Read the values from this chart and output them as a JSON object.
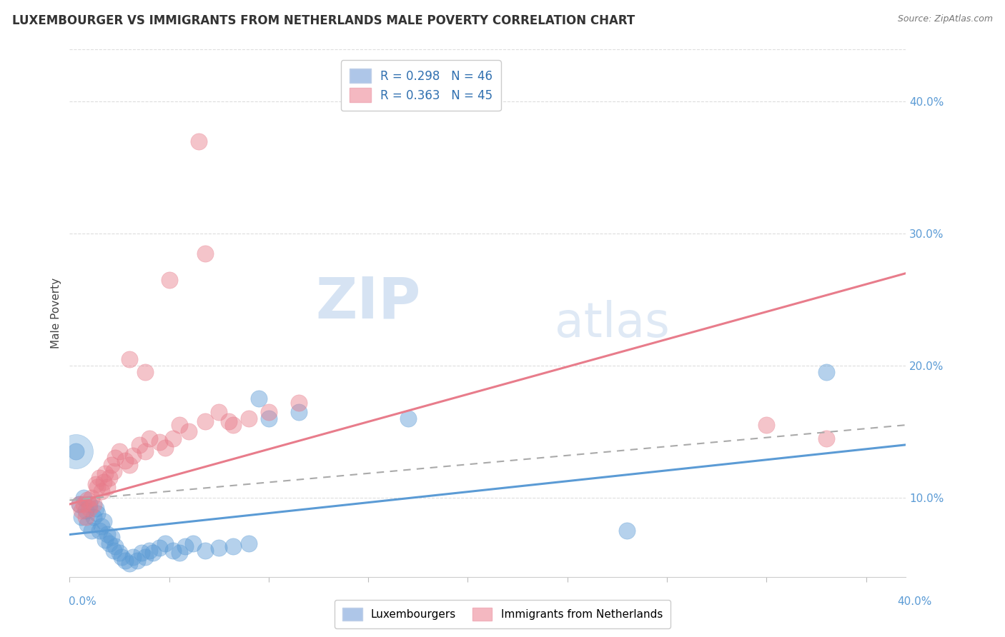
{
  "title": "LUXEMBOURGER VS IMMIGRANTS FROM NETHERLANDS MALE POVERTY CORRELATION CHART",
  "source": "Source: ZipAtlas.com",
  "ylabel": "Male Poverty",
  "y_tick_labels": [
    "10.0%",
    "20.0%",
    "30.0%",
    "40.0%"
  ],
  "y_tick_values": [
    0.1,
    0.2,
    0.3,
    0.4
  ],
  "xlim": [
    0.0,
    0.42
  ],
  "ylim": [
    0.04,
    0.44
  ],
  "legend_entries": [
    {
      "label": "R = 0.298   N = 46",
      "color": "#aec6e8"
    },
    {
      "label": "R = 0.363   N = 45",
      "color": "#f4b8c1"
    }
  ],
  "legend_label_bottom": [
    "Luxembourgers",
    "Immigrants from Netherlands"
  ],
  "blue_color": "#5b9bd5",
  "pink_color": "#e87c8b",
  "blue_scatter": [
    [
      0.003,
      0.135
    ],
    [
      0.005,
      0.095
    ],
    [
      0.006,
      0.085
    ],
    [
      0.007,
      0.1
    ],
    [
      0.008,
      0.09
    ],
    [
      0.009,
      0.08
    ],
    [
      0.01,
      0.095
    ],
    [
      0.011,
      0.075
    ],
    [
      0.012,
      0.085
    ],
    [
      0.013,
      0.092
    ],
    [
      0.014,
      0.088
    ],
    [
      0.015,
      0.075
    ],
    [
      0.016,
      0.078
    ],
    [
      0.017,
      0.082
    ],
    [
      0.018,
      0.068
    ],
    [
      0.019,
      0.072
    ],
    [
      0.02,
      0.065
    ],
    [
      0.021,
      0.07
    ],
    [
      0.022,
      0.06
    ],
    [
      0.023,
      0.063
    ],
    [
      0.025,
      0.058
    ],
    [
      0.026,
      0.055
    ],
    [
      0.028,
      0.052
    ],
    [
      0.03,
      0.05
    ],
    [
      0.032,
      0.055
    ],
    [
      0.034,
      0.052
    ],
    [
      0.036,
      0.058
    ],
    [
      0.038,
      0.055
    ],
    [
      0.04,
      0.06
    ],
    [
      0.042,
      0.058
    ],
    [
      0.045,
      0.062
    ],
    [
      0.048,
      0.065
    ],
    [
      0.052,
      0.06
    ],
    [
      0.055,
      0.058
    ],
    [
      0.058,
      0.063
    ],
    [
      0.062,
      0.065
    ],
    [
      0.068,
      0.06
    ],
    [
      0.075,
      0.062
    ],
    [
      0.082,
      0.063
    ],
    [
      0.09,
      0.065
    ],
    [
      0.1,
      0.16
    ],
    [
      0.115,
      0.165
    ],
    [
      0.28,
      0.075
    ],
    [
      0.38,
      0.195
    ],
    [
      0.095,
      0.175
    ],
    [
      0.17,
      0.16
    ]
  ],
  "pink_scatter": [
    [
      0.005,
      0.095
    ],
    [
      0.006,
      0.09
    ],
    [
      0.007,
      0.095
    ],
    [
      0.008,
      0.085
    ],
    [
      0.009,
      0.098
    ],
    [
      0.01,
      0.092
    ],
    [
      0.011,
      0.1
    ],
    [
      0.012,
      0.095
    ],
    [
      0.013,
      0.11
    ],
    [
      0.014,
      0.108
    ],
    [
      0.015,
      0.115
    ],
    [
      0.016,
      0.105
    ],
    [
      0.017,
      0.112
    ],
    [
      0.018,
      0.118
    ],
    [
      0.019,
      0.108
    ],
    [
      0.02,
      0.115
    ],
    [
      0.021,
      0.125
    ],
    [
      0.022,
      0.12
    ],
    [
      0.023,
      0.13
    ],
    [
      0.025,
      0.135
    ],
    [
      0.028,
      0.128
    ],
    [
      0.03,
      0.125
    ],
    [
      0.032,
      0.132
    ],
    [
      0.035,
      0.14
    ],
    [
      0.038,
      0.135
    ],
    [
      0.04,
      0.145
    ],
    [
      0.045,
      0.142
    ],
    [
      0.048,
      0.138
    ],
    [
      0.052,
      0.145
    ],
    [
      0.06,
      0.15
    ],
    [
      0.068,
      0.158
    ],
    [
      0.075,
      0.165
    ],
    [
      0.082,
      0.155
    ],
    [
      0.09,
      0.16
    ],
    [
      0.1,
      0.165
    ],
    [
      0.115,
      0.172
    ],
    [
      0.065,
      0.37
    ],
    [
      0.068,
      0.285
    ],
    [
      0.05,
      0.265
    ],
    [
      0.03,
      0.205
    ],
    [
      0.038,
      0.195
    ],
    [
      0.35,
      0.155
    ],
    [
      0.38,
      0.145
    ],
    [
      0.055,
      0.155
    ],
    [
      0.08,
      0.158
    ]
  ],
  "blue_line_x": [
    0.0,
    0.42
  ],
  "blue_line_y": [
    0.072,
    0.14
  ],
  "pink_line_x": [
    0.0,
    0.42
  ],
  "pink_line_y": [
    0.095,
    0.27
  ],
  "dash_line_x": [
    0.0,
    0.42
  ],
  "dash_line_y": [
    0.098,
    0.155
  ],
  "watermark_zip": "ZIP",
  "watermark_atlas": "atlas",
  "background_color": "#ffffff",
  "grid_color": "#dddddd"
}
